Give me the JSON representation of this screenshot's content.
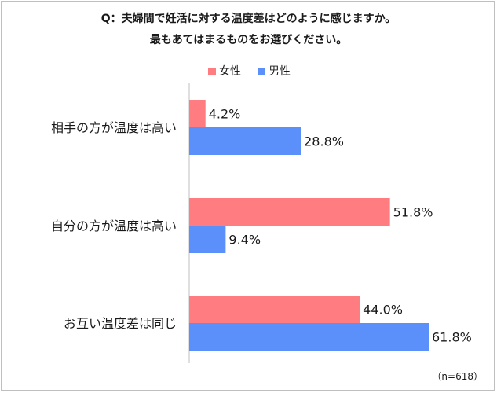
{
  "title": {
    "line1": "Q：夫婦間で妊活に対する温度差はどのように感じますか。",
    "line2": "最もあてはまるものをお選びください。"
  },
  "note": "（n=618）",
  "chart_data": {
    "type": "bar",
    "orientation": "horizontal",
    "categories": [
      "相手の方が温度は高い",
      "自分の方が温度は高い",
      "お互い温度差は同じ"
    ],
    "series": [
      {
        "name": "女性",
        "values": [
          4.2,
          51.8,
          44.0
        ],
        "color": "#ff7c80"
      },
      {
        "name": "男性",
        "values": [
          28.8,
          9.4,
          61.8
        ],
        "color": "#5b8ff9"
      }
    ],
    "value_labels": [
      [
        "4.2%",
        "51.8%",
        "44.0%"
      ],
      [
        "28.8%",
        "9.4%",
        "61.8%"
      ]
    ],
    "unit": "%",
    "xlim": [
      0,
      100
    ],
    "grid": false,
    "legend": "top-center"
  }
}
